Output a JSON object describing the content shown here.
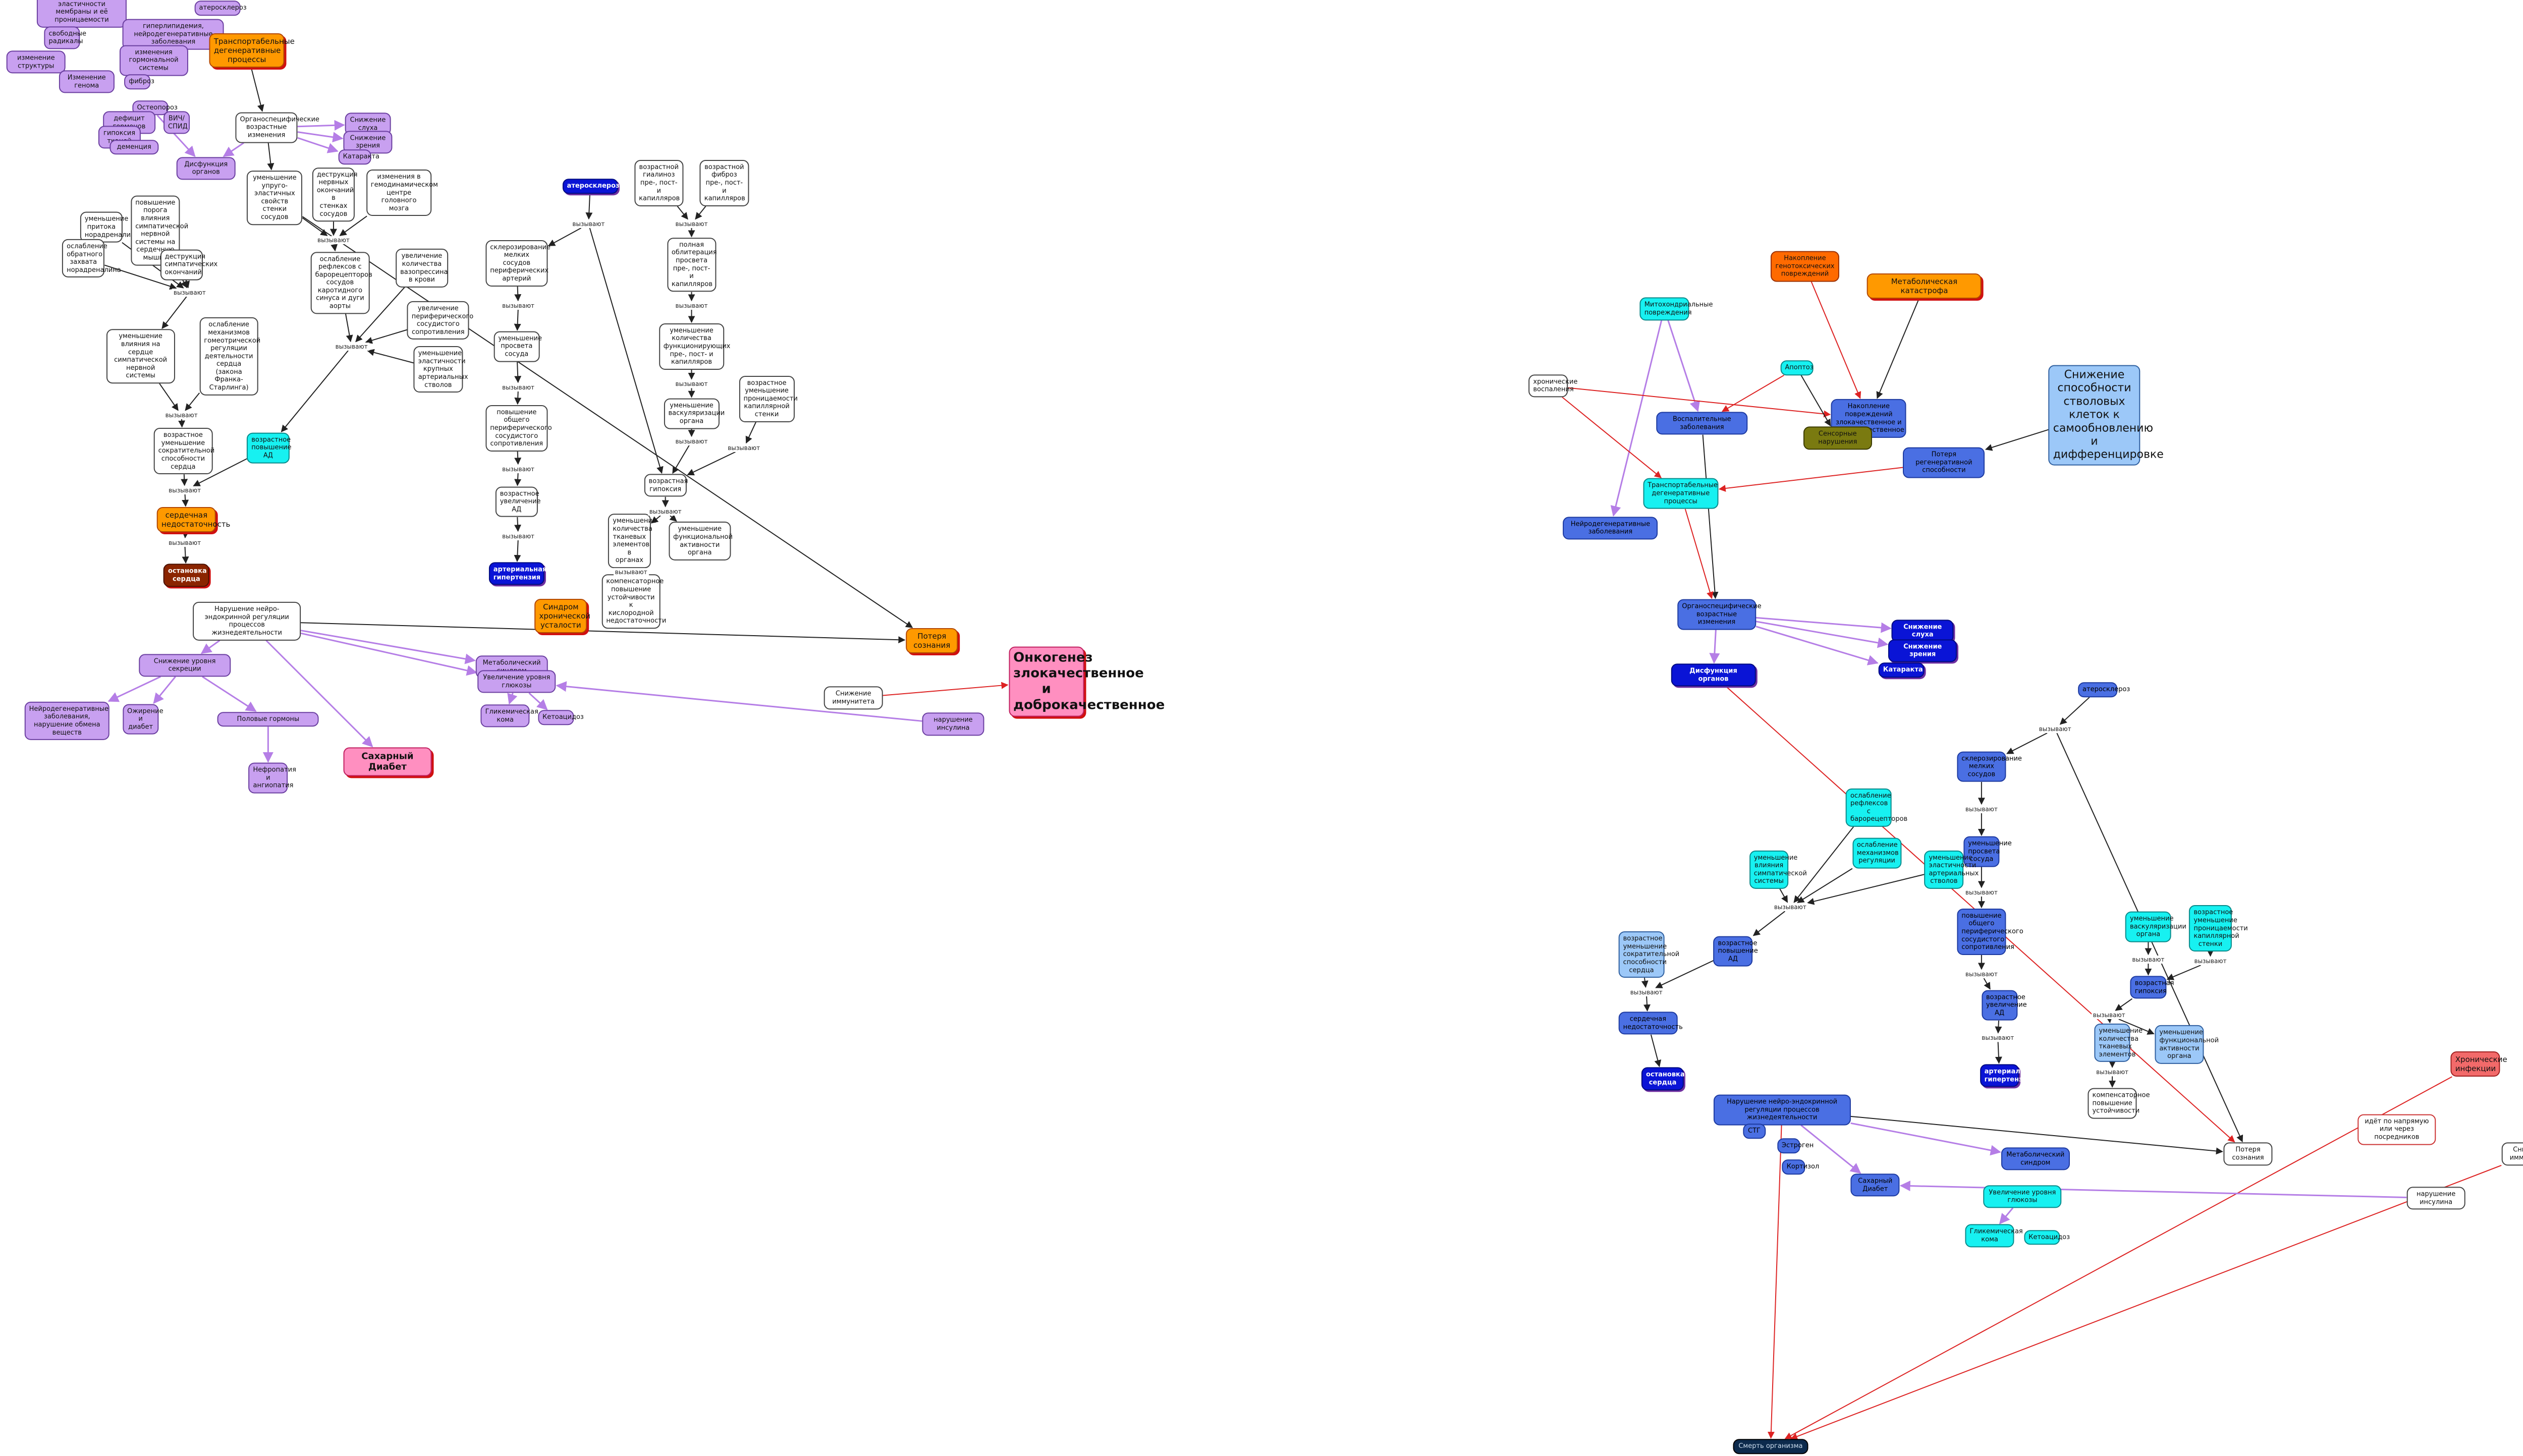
{
  "nodes": [
    "Изменение эластичности мембраны и её проницаемости",
    "атеросклероз",
    "свободные радикалы",
    "гиперлипидемия, нейродегенеративные заболевания",
    "изменение структуры",
    "изменения гормональной системы",
    "Изменение генома",
    "фиброз",
    "Транспортабельные дегенеративные процессы",
    "Остеопороз",
    "дефицит гормонов",
    "ВИЧ/СПИД",
    "гипоксия тканей",
    "деменция",
    "Органоспецифические возрастные изменения",
    "Снижение слуха",
    "Снижение зрения",
    "Катаракта",
    "Дисфункция органов",
    "уменьшение упруго-эластичных свойств стенки сосудов",
    "деструкция нервных окончаний в стенках сосудов",
    "изменения в гемодинамическом центре головного мозга",
    "ослабление рефлексов с барорецепторов сосудов каротидного синуса и дуги аорты",
    "увеличение количества вазопрессина в крови",
    "увеличение периферического сосудистого сопротивления",
    "уменьшение эластичности крупных артериальных стволов",
    "уменьшение притока норадреналина",
    "повышение порога влияния симпатической нервной системы на сердечную мышцу",
    "ослабление обратного захвата норадреналина",
    "деструкция симпатических окончаний",
    "уменьшение влияния на сердце симпатической нервной системы",
    "ослабление механизмов гомеотрической регуляции деятельности сердца (закона Франка-Старлинга)",
    "возрастное уменьшение сократительной способности сердца",
    "возрастное повышение АД",
    "сердечная недостаточность",
    "остановка сердца",
    "атеросклероз",
    "склерозирование мелких сосудов периферических артерий",
    "уменьшение просвета сосуда",
    "повышение общего периферического сосудистого сопротивления",
    "возрастное увеличение АД",
    "артериальная гипертензия",
    "возрастной гиалиноз пре-, пост- и капилляров",
    "возрастной фиброз пре-, пост- и капилляров",
    "полная облитерация просвета пре-, пост- и капилляров",
    "уменьшение количества функционирующих пре-, пост- и капилляров",
    "уменьшение васкуляризации органа",
    "возрастное уменьшение проницаемости капиллярной стенки",
    "возрастная гипоксия",
    "уменьшение количества тканевых элементов в органах",
    "уменьшение функциональной активности органа",
    "компенсаторное повышение устойчивости к кислородной недостаточности",
    "Нарушение нейро-эндокринной регуляции процессов жизнедеятельности",
    "Снижение уровня секреции",
    "Потеря сознания",
    "Метаболический синдром",
    "Увеличение уровня глюкозы",
    "Сахарный Диабет",
    "Онкогенез злокачественное и доброкачественное",
    "Снижение иммунитета",
    "нарушение инсулина",
    "Гликемическая кома",
    "Кетоацидоз",
    "Нефропатия и ангиопатия",
    "Синдром хронической усталости",
    "Нейродегенеративные заболевания, нарушение обмена веществ",
    "Ожирение и диабет",
    "Половые гормоны",
    "Снижение способности стволовых клеток к самообновлению и дифференцировке",
    "Метаболическая катастрофа",
    "Накопление генотоксических повреждений",
    "Накопление повреждений злокачественное и доброкачественное",
    "Митохондриальные повреждения",
    "Апоптоз",
    "хронические воспаления",
    "Воспалительные заболевания",
    "Сенсорные нарушения",
    "Транспортабельные дегенеративные процессы",
    "Потеря регенеративной способности",
    "Нейродегенеративные заболевания",
    "Органоспецифические возрастные изменения",
    "Снижение слуха",
    "Снижение зрения",
    "Катаракта",
    "Дисфункция органов",
    "атеросклероз",
    "склерозирование мелких сосудов",
    "уменьшение просвета сосуда",
    "повышение общего периферического сосудистого сопротивления",
    "возрастное увеличение АД",
    "артериальная гипертензия",
    "ослабление рефлексов с барорецепторов",
    "ослабление механизмов регуляции",
    "уменьшение влияния симпатической системы",
    "уменьшение эластичности артериальных стволов",
    "возрастное уменьшение сократительной способности сердца",
    "возрастное повышение АД",
    "сердечная недостаточность",
    "остановка сердца",
    "уменьшение васкуляризации органа",
    "возрастное уменьшение проницаемости капиллярной стенки",
    "возрастная гипоксия",
    "уменьшение количества тканевых элементов",
    "уменьшение функциональной активности органа",
    "компенсаторное повышение устойчивости",
    "Хронические инфекции",
    "идёт по напрямую или через посредников",
    "Потеря сознания",
    "Нарушение нейро-эндокринной регуляции процессов жизнедеятельности",
    "СТГ",
    "Эстроген",
    "Кортизол",
    "Метаболический синдром",
    "Увеличение уровня глюкозы",
    "Гликемическая кома",
    "Кетоацидоз",
    "Сахарный Диабет",
    "нарушение инсулина",
    "Снижение иммунитета",
    "Смерть организма"
  ],
  "link_labels": [
    "вызывают",
    "вызывают",
    "вызывают",
    "вызывают",
    "вызывают",
    "вызывают",
    "вызывают",
    "вызывают",
    "вызывают",
    "вызывают",
    "вызывают",
    "вызывают",
    "вызывают",
    "вызывают",
    "вызывают",
    "вызывают",
    "вызывают",
    "вызывают",
    "вызывают",
    "вызывают",
    "вызывают",
    "вызывают",
    "вызывают",
    "вызывают",
    "вызывают",
    "вызывают",
    "вызывают",
    "вызывают",
    "вызывают"
  ]
}
